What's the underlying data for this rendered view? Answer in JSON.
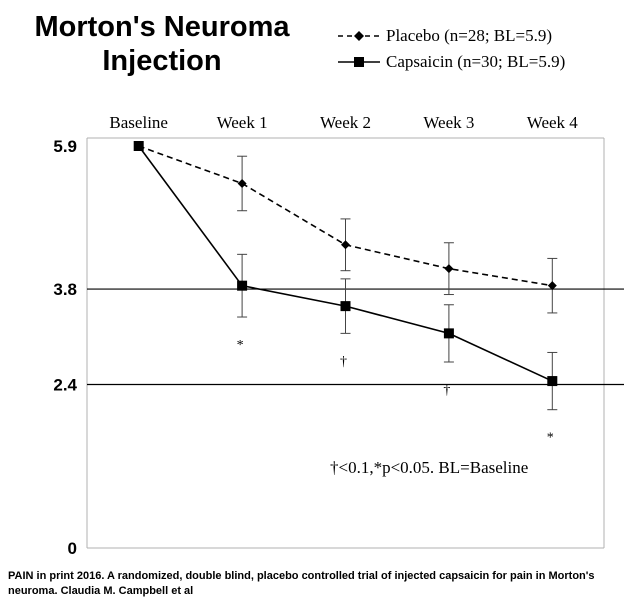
{
  "title": "Morton's Neuroma\nInjection",
  "legend": {
    "placebo": "Placebo (n=28; BL=5.9)",
    "capsaicin": "Capsaicin (n=30; BL=5.9)"
  },
  "note": "†<0.1,*p<0.05. BL=Baseline",
  "footer": "PAIN in print 2016. A randomized, double blind, placebo controlled trial of injected capsaicin for pain in Morton's neuroma. Claudia M. Campbell et al",
  "chart_data": {
    "type": "line",
    "categories": [
      "Baseline",
      "Week 1",
      "Week 2",
      "Week 3",
      "Week 4"
    ],
    "ylim": [
      0,
      5.9
    ],
    "yticks": [
      "5.9",
      "3.8",
      "2.4",
      "0"
    ],
    "ytick_values": [
      5.9,
      3.8,
      2.4,
      0
    ],
    "reference_lines": [
      3.8,
      2.4
    ],
    "series": [
      {
        "name": "Placebo (n=28; BL=5.9)",
        "style": "dashed",
        "marker": "diamond",
        "values": [
          5.9,
          5.35,
          4.45,
          4.1,
          3.85
        ],
        "errors": [
          0,
          0.4,
          0.38,
          0.38,
          0.4
        ]
      },
      {
        "name": "Capsaicin (n=30; BL=5.9)",
        "style": "solid",
        "marker": "square",
        "values": [
          5.9,
          3.85,
          3.55,
          3.15,
          2.45
        ],
        "errors": [
          0,
          0.46,
          0.4,
          0.42,
          0.42
        ]
      }
    ],
    "annotations": [
      {
        "category": "Week 1",
        "text": "*"
      },
      {
        "category": "Week 2",
        "text": "†"
      },
      {
        "category": "Week 3",
        "text": "†"
      },
      {
        "category": "Week 4",
        "text": "*"
      }
    ],
    "colors": {
      "line": "#000000",
      "axis": "#b0b0b0",
      "reference": "#000000"
    }
  }
}
